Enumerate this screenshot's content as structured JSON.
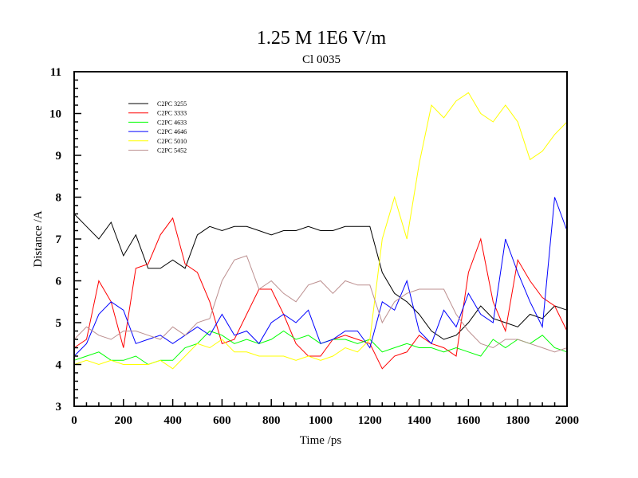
{
  "chart_data": {
    "type": "line",
    "title": "1.25 M 1E6 V/m",
    "subtitle": "Cl 0035",
    "xlabel": "Time /ps",
    "ylabel": "Distance /A",
    "xlim": [
      0,
      2000
    ],
    "ylim": [
      3,
      11
    ],
    "xticks": [
      0,
      200,
      400,
      600,
      800,
      1000,
      1200,
      1400,
      1600,
      1800,
      2000
    ],
    "yticks": [
      3,
      4,
      5,
      6,
      7,
      8,
      9,
      10,
      11
    ],
    "grid": false,
    "legend_position": "top-left",
    "x": [
      0,
      50,
      100,
      150,
      200,
      250,
      300,
      350,
      400,
      450,
      500,
      550,
      600,
      650,
      700,
      750,
      800,
      850,
      900,
      950,
      1000,
      1050,
      1100,
      1150,
      1200,
      1250,
      1300,
      1350,
      1400,
      1450,
      1500,
      1550,
      1600,
      1650,
      1700,
      1750,
      1800,
      1850,
      1900,
      1950,
      2000
    ],
    "series": [
      {
        "name": "C2PC 3255",
        "color": "#000000",
        "values": [
          7.6,
          7.3,
          7.0,
          7.4,
          6.6,
          7.1,
          6.3,
          6.3,
          6.5,
          6.3,
          7.1,
          7.3,
          7.2,
          7.3,
          7.3,
          7.2,
          7.1,
          7.2,
          7.2,
          7.3,
          7.2,
          7.2,
          7.3,
          7.3,
          7.3,
          6.2,
          5.7,
          5.5,
          5.2,
          4.8,
          4.6,
          4.7,
          5.0,
          5.4,
          5.1,
          5.0,
          4.9,
          5.2,
          5.1,
          5.4,
          5.3
        ]
      },
      {
        "name": "C2PC 3333",
        "color": "#ff0000",
        "values": [
          4.4,
          4.6,
          6.0,
          5.5,
          4.4,
          6.3,
          6.4,
          7.1,
          7.5,
          6.4,
          6.2,
          5.5,
          4.5,
          4.6,
          5.2,
          5.8,
          5.8,
          5.2,
          4.5,
          4.2,
          4.2,
          4.6,
          4.7,
          4.6,
          4.5,
          3.9,
          4.2,
          4.3,
          4.7,
          4.5,
          4.4,
          4.2,
          6.2,
          7.0,
          5.5,
          4.8,
          6.5,
          6.0,
          5.6,
          5.4,
          4.8
        ]
      },
      {
        "name": "C2PC 4633",
        "color": "#00ff00",
        "values": [
          4.1,
          4.2,
          4.3,
          4.1,
          4.1,
          4.2,
          4.0,
          4.1,
          4.1,
          4.4,
          4.5,
          4.8,
          4.7,
          4.5,
          4.6,
          4.5,
          4.6,
          4.8,
          4.6,
          4.7,
          4.5,
          4.6,
          4.6,
          4.5,
          4.6,
          4.3,
          4.4,
          4.5,
          4.4,
          4.4,
          4.3,
          4.4,
          4.3,
          4.2,
          4.6,
          4.4,
          4.6,
          4.5,
          4.7,
          4.4,
          4.3
        ]
      },
      {
        "name": "C2PC 4646",
        "color": "#0000ff",
        "values": [
          4.2,
          4.5,
          5.2,
          5.5,
          5.3,
          4.5,
          4.6,
          4.7,
          4.5,
          4.7,
          4.9,
          4.7,
          5.2,
          4.7,
          4.8,
          4.5,
          5.0,
          5.2,
          5.0,
          5.3,
          4.5,
          4.6,
          4.8,
          4.8,
          4.4,
          5.5,
          5.3,
          6.0,
          4.8,
          4.5,
          5.3,
          4.9,
          5.7,
          5.2,
          5.0,
          7.0,
          6.2,
          5.5,
          4.9,
          8.0,
          7.2
        ]
      },
      {
        "name": "C2PC 5010",
        "color": "#ffff00",
        "values": [
          4.0,
          4.1,
          4.0,
          4.1,
          4.0,
          4.0,
          4.0,
          4.1,
          3.9,
          4.2,
          4.5,
          4.4,
          4.6,
          4.3,
          4.3,
          4.2,
          4.2,
          4.2,
          4.1,
          4.2,
          4.1,
          4.2,
          4.4,
          4.3,
          4.6,
          7.0,
          8.0,
          7.0,
          8.8,
          10.2,
          9.9,
          10.3,
          10.5,
          10.0,
          9.8,
          10.2,
          9.8,
          8.9,
          9.1,
          9.5,
          9.8
        ]
      },
      {
        "name": "C2PC 5452",
        "color": "#bc8f8f",
        "values": [
          4.6,
          4.9,
          4.7,
          4.6,
          4.8,
          4.8,
          4.7,
          4.6,
          4.9,
          4.7,
          5.0,
          5.1,
          6.0,
          6.5,
          6.6,
          5.8,
          6.0,
          5.7,
          5.5,
          5.9,
          6.0,
          5.7,
          6.0,
          5.9,
          5.9,
          5.0,
          5.5,
          5.7,
          5.8,
          5.8,
          5.8,
          5.2,
          4.8,
          4.5,
          4.4,
          4.6,
          4.6,
          4.5,
          4.4,
          4.3,
          4.4
        ]
      }
    ]
  }
}
